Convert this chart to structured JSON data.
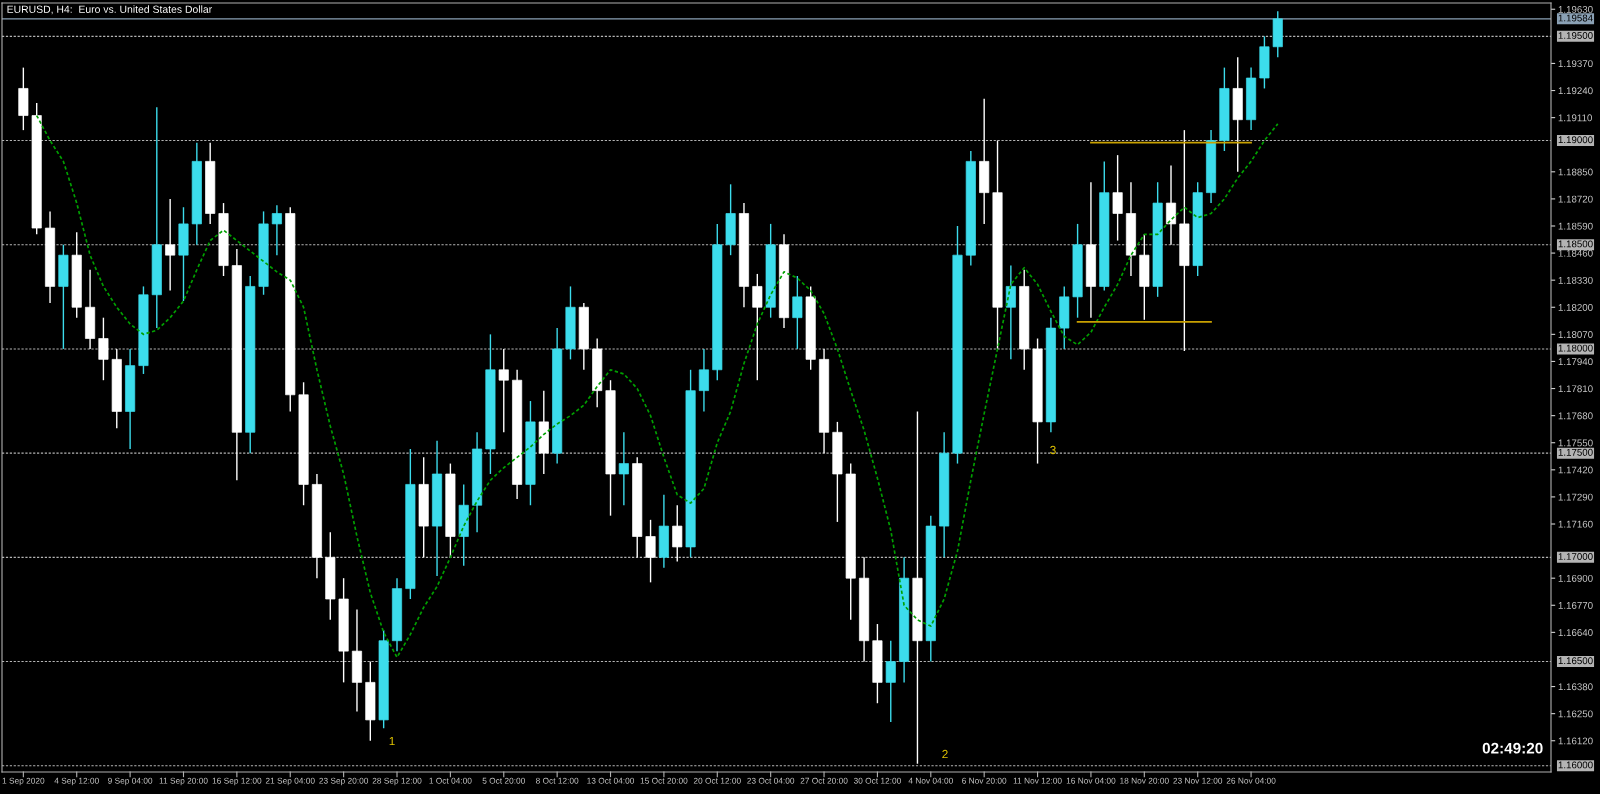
{
  "chart_data": {
    "type": "candlestick",
    "title": "EURUSD, H4:  Euro vs. United States Dollar",
    "categories": [
      "1 Sep 2020",
      null,
      null,
      null,
      "4 Sep 12:00",
      null,
      null,
      null,
      "9 Sep 04:00",
      null,
      null,
      null,
      "11 Sep 20:00",
      null,
      null,
      null,
      "16 Sep 12:00",
      null,
      null,
      null,
      "21 Sep 04:00",
      null,
      null,
      null,
      "23 Sep 20:00",
      null,
      null,
      null,
      "28 Sep 12:00",
      null,
      null,
      null,
      "1 Oct 04:00",
      null,
      null,
      null,
      "5 Oct 20:00",
      null,
      null,
      null,
      "8 Oct 12:00",
      null,
      null,
      null,
      "13 Oct 04:00",
      null,
      null,
      null,
      "15 Oct 20:00",
      null,
      null,
      null,
      "20 Oct 12:00",
      null,
      null,
      null,
      "23 Oct 04:00",
      null,
      null,
      null,
      "27 Oct 20:00",
      null,
      null,
      null,
      "30 Oct 12:00",
      null,
      null,
      null,
      "4 Nov 04:00",
      null,
      null,
      null,
      "6 Nov 20:00",
      null,
      null,
      null,
      "11 Nov 12:00",
      null,
      null,
      null,
      "16 Nov 04:00",
      null,
      null,
      null,
      "18 Nov 20:00",
      null,
      null,
      null,
      "23 Nov 12:00",
      null,
      null,
      null,
      "26 Nov 04:00",
      null,
      null
    ],
    "ohlc": [
      [
        1.1925,
        1.1935,
        1.1905,
        1.1912
      ],
      [
        1.1912,
        1.1918,
        1.1855,
        1.1858
      ],
      [
        1.1858,
        1.1866,
        1.1822,
        1.183
      ],
      [
        1.183,
        1.185,
        1.18,
        1.1845
      ],
      [
        1.1845,
        1.1856,
        1.1815,
        1.182
      ],
      [
        1.182,
        1.1838,
        1.18,
        1.1805
      ],
      [
        1.1805,
        1.1815,
        1.1785,
        1.1795
      ],
      [
        1.1795,
        1.18,
        1.1762,
        1.177
      ],
      [
        1.177,
        1.18,
        1.1752,
        1.1792
      ],
      [
        1.1792,
        1.183,
        1.1788,
        1.1826
      ],
      [
        1.1826,
        1.1916,
        1.181,
        1.185
      ],
      [
        1.185,
        1.1872,
        1.1828,
        1.1845
      ],
      [
        1.1845,
        1.1868,
        1.1823,
        1.186
      ],
      [
        1.186,
        1.1899,
        1.185,
        1.189
      ],
      [
        1.189,
        1.1899,
        1.186,
        1.1865
      ],
      [
        1.1865,
        1.187,
        1.1835,
        1.184
      ],
      [
        1.184,
        1.1848,
        1.1737,
        1.176
      ],
      [
        1.176,
        1.1835,
        1.175,
        1.183
      ],
      [
        1.183,
        1.1866,
        1.1826,
        1.186
      ],
      [
        1.186,
        1.1869,
        1.1845,
        1.1865
      ],
      [
        1.1865,
        1.1868,
        1.177,
        1.1778
      ],
      [
        1.1778,
        1.1784,
        1.1725,
        1.1735
      ],
      [
        1.1735,
        1.174,
        1.169,
        1.17
      ],
      [
        1.17,
        1.1712,
        1.167,
        1.168
      ],
      [
        1.168,
        1.169,
        1.164,
        1.1655
      ],
      [
        1.1655,
        1.1675,
        1.1626,
        1.164
      ],
      [
        1.164,
        1.165,
        1.1612,
        1.1622
      ],
      [
        1.1622,
        1.1665,
        1.1618,
        1.166
      ],
      [
        1.166,
        1.169,
        1.1655,
        1.1685
      ],
      [
        1.1685,
        1.1752,
        1.168,
        1.1735
      ],
      [
        1.1735,
        1.1748,
        1.17,
        1.1715
      ],
      [
        1.1715,
        1.1756,
        1.1691,
        1.174
      ],
      [
        1.174,
        1.1745,
        1.17,
        1.171
      ],
      [
        1.171,
        1.1735,
        1.1696,
        1.1725
      ],
      [
        1.1725,
        1.176,
        1.1712,
        1.1752
      ],
      [
        1.1752,
        1.1807,
        1.174,
        1.179
      ],
      [
        1.179,
        1.18,
        1.176,
        1.1785
      ],
      [
        1.1785,
        1.179,
        1.1728,
        1.1735
      ],
      [
        1.1735,
        1.1775,
        1.1725,
        1.1765
      ],
      [
        1.1765,
        1.178,
        1.174,
        1.175
      ],
      [
        1.175,
        1.181,
        1.1745,
        1.18
      ],
      [
        1.18,
        1.183,
        1.1795,
        1.182
      ],
      [
        1.182,
        1.1822,
        1.179,
        1.18
      ],
      [
        1.18,
        1.1805,
        1.1772,
        1.178
      ],
      [
        1.178,
        1.1785,
        1.172,
        1.174
      ],
      [
        1.174,
        1.176,
        1.1725,
        1.1745
      ],
      [
        1.1745,
        1.1748,
        1.17,
        1.171
      ],
      [
        1.171,
        1.1718,
        1.1688,
        1.17
      ],
      [
        1.17,
        1.173,
        1.1695,
        1.1715
      ],
      [
        1.1715,
        1.1725,
        1.1698,
        1.1705
      ],
      [
        1.1705,
        1.179,
        1.17,
        1.178
      ],
      [
        1.178,
        1.18,
        1.177,
        1.179
      ],
      [
        1.179,
        1.186,
        1.1785,
        1.185
      ],
      [
        1.185,
        1.1879,
        1.1845,
        1.1865
      ],
      [
        1.1865,
        1.187,
        1.182,
        1.183
      ],
      [
        1.183,
        1.1836,
        1.1785,
        1.182
      ],
      [
        1.182,
        1.186,
        1.1815,
        1.185
      ],
      [
        1.185,
        1.1855,
        1.181,
        1.1815
      ],
      [
        1.1815,
        1.1835,
        1.18,
        1.1825
      ],
      [
        1.1825,
        1.183,
        1.179,
        1.1795
      ],
      [
        1.1795,
        1.18,
        1.175,
        1.176
      ],
      [
        1.176,
        1.1765,
        1.1717,
        1.174
      ],
      [
        1.174,
        1.1745,
        1.167,
        1.169
      ],
      [
        1.169,
        1.17,
        1.165,
        1.166
      ],
      [
        1.166,
        1.1668,
        1.163,
        1.164
      ],
      [
        1.164,
        1.166,
        1.1621,
        1.165
      ],
      [
        1.165,
        1.17,
        1.164,
        1.169
      ],
      [
        1.169,
        1.177,
        1.1601,
        1.166
      ],
      [
        1.166,
        1.172,
        1.165,
        1.1715
      ],
      [
        1.1715,
        1.176,
        1.17,
        1.175
      ],
      [
        1.175,
        1.1859,
        1.1745,
        1.1845
      ],
      [
        1.1845,
        1.1895,
        1.184,
        1.189
      ],
      [
        1.189,
        1.192,
        1.186,
        1.1875
      ],
      [
        1.1875,
        1.19,
        1.18,
        1.182
      ],
      [
        1.182,
        1.184,
        1.1795,
        1.183
      ],
      [
        1.183,
        1.1838,
        1.179,
        1.18
      ],
      [
        1.18,
        1.1805,
        1.1745,
        1.1765
      ],
      [
        1.1765,
        1.1815,
        1.176,
        1.181
      ],
      [
        1.181,
        1.183,
        1.18,
        1.1825
      ],
      [
        1.1825,
        1.186,
        1.1815,
        1.185
      ],
      [
        1.185,
        1.188,
        1.1815,
        1.183
      ],
      [
        1.183,
        1.189,
        1.1828,
        1.1875
      ],
      [
        1.1875,
        1.1893,
        1.1852,
        1.1865
      ],
      [
        1.1865,
        1.188,
        1.1835,
        1.1845
      ],
      [
        1.1845,
        1.1855,
        1.1814,
        1.183
      ],
      [
        1.183,
        1.188,
        1.1825,
        1.187
      ],
      [
        1.187,
        1.1888,
        1.185,
        1.186
      ],
      [
        1.186,
        1.1905,
        1.1799,
        1.184
      ],
      [
        1.184,
        1.188,
        1.1835,
        1.1875
      ],
      [
        1.1875,
        1.1905,
        1.187,
        1.19
      ],
      [
        1.19,
        1.1935,
        1.1895,
        1.1925
      ],
      [
        1.1925,
        1.194,
        1.1885,
        1.191
      ],
      [
        1.191,
        1.1935,
        1.1905,
        1.193
      ],
      [
        1.193,
        1.195,
        1.1925,
        1.1945
      ],
      [
        1.1945,
        1.1962,
        1.194,
        1.19584
      ]
    ],
    "colors": [
      "#ffffff",
      "#ffffff",
      "#ffffff",
      "#3cdcec",
      "#ffffff",
      "#ffffff",
      "#ffffff",
      "#ffffff",
      "#3cdcec",
      "#3cdcec",
      "#3cdcec",
      "#ffffff",
      "#3cdcec",
      "#3cdcec",
      "#ffffff",
      "#ffffff",
      "#ffffff",
      "#3cdcec",
      "#3cdcec",
      "#3cdcec",
      "#ffffff",
      "#ffffff",
      "#ffffff",
      "#ffffff",
      "#ffffff",
      "#ffffff",
      "#ffffff",
      "#3cdcec",
      "#3cdcec",
      "#3cdcec",
      "#ffffff",
      "#3cdcec",
      "#ffffff",
      "#3cdcec",
      "#3cdcec",
      "#3cdcec",
      "#ffffff",
      "#ffffff",
      "#3cdcec",
      "#ffffff",
      "#3cdcec",
      "#3cdcec",
      "#ffffff",
      "#ffffff",
      "#ffffff",
      "#3cdcec",
      "#ffffff",
      "#ffffff",
      "#3cdcec",
      "#ffffff",
      "#3cdcec",
      "#3cdcec",
      "#3cdcec",
      "#3cdcec",
      "#ffffff",
      "#ffffff",
      "#3cdcec",
      "#ffffff",
      "#3cdcec",
      "#ffffff",
      "#ffffff",
      "#ffffff",
      "#ffffff",
      "#ffffff",
      "#ffffff",
      "#3cdcec",
      "#3cdcec",
      "#ffffff",
      "#3cdcec",
      "#3cdcec",
      "#3cdcec",
      "#3cdcec",
      "#ffffff",
      "#ffffff",
      "#3cdcec",
      "#ffffff",
      "#ffffff",
      "#3cdcec",
      "#3cdcec",
      "#3cdcec",
      "#ffffff",
      "#3cdcec",
      "#ffffff",
      "#ffffff",
      "#ffffff",
      "#3cdcec",
      "#ffffff",
      "#ffffff",
      "#3cdcec",
      "#3cdcec",
      "#3cdcec",
      "#ffffff",
      "#3cdcec",
      "#3cdcec",
      "#3cdcec"
    ],
    "series": [
      {
        "type": "line",
        "color": "#00a000",
        "line_style": "dashed",
        "values": [
          null,
          1.1912,
          1.19,
          1.189,
          1.187,
          1.1845,
          1.183,
          1.182,
          1.1812,
          1.1807,
          1.1809,
          1.1815,
          1.1823,
          1.1838,
          1.1852,
          1.1857,
          1.1852,
          1.1847,
          1.1842,
          1.1837,
          1.1833,
          1.182,
          1.179,
          1.1763,
          1.174,
          1.171,
          1.1683,
          1.1664,
          1.1652,
          1.1663,
          1.1676,
          1.1686,
          1.17,
          1.1715,
          1.1727,
          1.1737,
          1.1743,
          1.1748,
          1.1753,
          1.1759,
          1.1764,
          1.1768,
          1.1773,
          1.1782,
          1.179,
          1.1788,
          1.1781,
          1.1768,
          1.1748,
          1.173,
          1.1726,
          1.1733,
          1.1755,
          1.177,
          1.1793,
          1.1812,
          1.1826,
          1.1837,
          1.1834,
          1.1828,
          1.1817,
          1.18,
          1.178,
          1.1761,
          1.1738,
          1.1713,
          1.1677,
          1.167,
          1.1667,
          1.168,
          1.1703,
          1.1737,
          1.1769,
          1.18,
          1.1831,
          1.1839,
          1.1831,
          1.1818,
          1.1806,
          1.1802,
          1.1808,
          1.182,
          1.1831,
          1.1845,
          1.1855,
          1.1855,
          1.1862,
          1.1868,
          1.1863,
          1.1865,
          1.1872,
          1.1882,
          1.189,
          1.19,
          1.1908
        ]
      },
      {
        "type": "line",
        "color": "#c8a000",
        "line_style": "solid",
        "values": [
          null,
          null,
          null,
          null,
          null,
          null,
          null,
          null,
          null,
          null,
          null,
          null,
          null,
          null,
          null,
          null,
          null,
          null,
          null,
          null,
          null,
          null,
          null,
          null,
          null,
          null,
          null,
          null,
          null,
          null,
          null,
          null,
          null,
          null,
          null,
          null,
          null,
          null,
          null,
          null,
          null,
          null,
          null,
          null,
          null,
          null,
          null,
          null,
          null,
          null,
          null,
          null,
          null,
          null,
          null,
          null,
          null,
          null,
          null,
          null,
          null,
          null,
          null,
          null,
          null,
          null,
          null,
          null,
          null,
          null,
          null,
          null,
          null,
          null,
          null,
          null,
          null,
          null,
          null,
          null,
          1.1899,
          1.1899,
          1.1899,
          1.1899,
          1.1899,
          1.1899,
          1.1899,
          1.1899,
          1.1899,
          1.1899,
          1.1899,
          1.1899,
          1.1899,
          null,
          null
        ]
      },
      {
        "type": "line",
        "color": "#c8a000",
        "line_style": "solid",
        "values": [
          null,
          null,
          null,
          null,
          null,
          null,
          null,
          null,
          null,
          null,
          null,
          null,
          null,
          null,
          null,
          null,
          null,
          null,
          null,
          null,
          null,
          null,
          null,
          null,
          null,
          null,
          null,
          null,
          null,
          null,
          null,
          null,
          null,
          null,
          null,
          null,
          null,
          null,
          null,
          null,
          null,
          null,
          null,
          null,
          null,
          null,
          null,
          null,
          null,
          null,
          null,
          null,
          null,
          null,
          null,
          null,
          null,
          null,
          null,
          null,
          null,
          null,
          null,
          null,
          null,
          null,
          null,
          null,
          null,
          null,
          null,
          null,
          null,
          null,
          null,
          null,
          null,
          null,
          null,
          1.1813,
          1.1813,
          1.1813,
          1.1813,
          1.1813,
          1.1813,
          1.1813,
          1.1813,
          1.1813,
          1.1813,
          1.1813,
          null,
          null,
          null,
          null,
          null
        ]
      }
    ],
    "ylim": [
      1.1597,
      1.1966
    ],
    "yticks": [
      {
        "value": 1.1963,
        "label": "1.19630"
      },
      {
        "value": 1.1937,
        "label": "1.19370"
      },
      {
        "value": 1.1924,
        "label": "1.19240"
      },
      {
        "value": 1.1911,
        "label": "1.19110"
      },
      {
        "value": 1.1885,
        "label": "1.18850"
      },
      {
        "value": 1.1872,
        "label": "1.18720"
      },
      {
        "value": 1.1859,
        "label": "1.18590"
      },
      {
        "value": 1.1846,
        "label": "1.18460"
      },
      {
        "value": 1.1833,
        "label": "1.18330"
      },
      {
        "value": 1.182,
        "label": "1.18200"
      },
      {
        "value": 1.1807,
        "label": "1.18070"
      },
      {
        "value": 1.1794,
        "label": "1.17940"
      },
      {
        "value": 1.1781,
        "label": "1.17810"
      },
      {
        "value": 1.1768,
        "label": "1.17680"
      },
      {
        "value": 1.1755,
        "label": "1.17550"
      },
      {
        "value": 1.1742,
        "label": "1.17420"
      },
      {
        "value": 1.1729,
        "label": "1.17290"
      },
      {
        "value": 1.1716,
        "label": "1.17160"
      },
      {
        "value": 1.169,
        "label": "1.16900"
      },
      {
        "value": 1.1677,
        "label": "1.16770"
      },
      {
        "value": 1.1664,
        "label": "1.16640"
      },
      {
        "value": 1.1638,
        "label": "1.16380"
      },
      {
        "value": 1.1625,
        "label": "1.16250"
      },
      {
        "value": 1.1612,
        "label": "1.16120"
      }
    ],
    "ref_lines": [
      {
        "axis": "y",
        "value": 1.19584,
        "label": "1.19584",
        "color": "#8aa0b4",
        "line_style": "solid"
      },
      {
        "axis": "y",
        "value": 1.195,
        "label": "1.19500",
        "color": "#b4b4b4",
        "line_style": "dashed"
      },
      {
        "axis": "y",
        "value": 1.19,
        "label": "1.19000",
        "color": "#b4b4b4",
        "line_style": "dashed"
      },
      {
        "axis": "y",
        "value": 1.185,
        "label": "1.18500",
        "color": "#b4b4b4",
        "line_style": "dashed"
      },
      {
        "axis": "y",
        "value": 1.18,
        "label": "1.18000",
        "color": "#b4b4b4",
        "line_style": "dashed"
      },
      {
        "axis": "y",
        "value": 1.175,
        "label": "1.17500",
        "color": "#b4b4b4",
        "line_style": "dashed"
      },
      {
        "axis": "y",
        "value": 1.17,
        "label": "1.17000",
        "color": "#b4b4b4",
        "line_style": "dashed"
      },
      {
        "axis": "y",
        "value": 1.165,
        "label": "1.16500",
        "color": "#b4b4b4",
        "line_style": "dashed"
      },
      {
        "axis": "y",
        "value": 1.16,
        "label": "1.16000",
        "color": "#b4b4b4",
        "line_style": "dashed"
      }
    ],
    "annotations": [
      "1",
      "2",
      "3",
      "02:49:20"
    ],
    "grid": false,
    "legend": false
  }
}
